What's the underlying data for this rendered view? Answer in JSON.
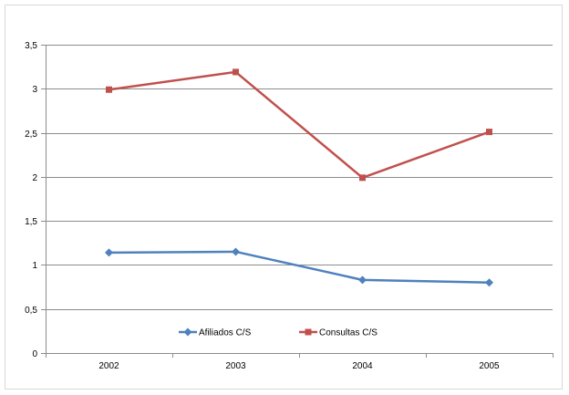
{
  "chart_data": {
    "type": "line",
    "title": "",
    "xlabel": "",
    "ylabel": "",
    "categories": [
      "2002",
      "2003",
      "2004",
      "2005"
    ],
    "series": [
      {
        "name": "Afiliados C/S",
        "values": [
          1.14,
          1.15,
          0.83,
          0.8
        ],
        "color": "#4f81bd",
        "marker": "diamond"
      },
      {
        "name": "Consultas C/S",
        "values": [
          2.99,
          3.19,
          1.99,
          2.51
        ],
        "color": "#c0504d",
        "marker": "square"
      }
    ],
    "ylim": [
      0,
      3.5
    ],
    "yticks": [
      "0",
      "0,5",
      "1",
      "1,5",
      "2",
      "2,5",
      "3",
      "3,5"
    ],
    "grid": true,
    "legend_position": "bottom-inside"
  }
}
